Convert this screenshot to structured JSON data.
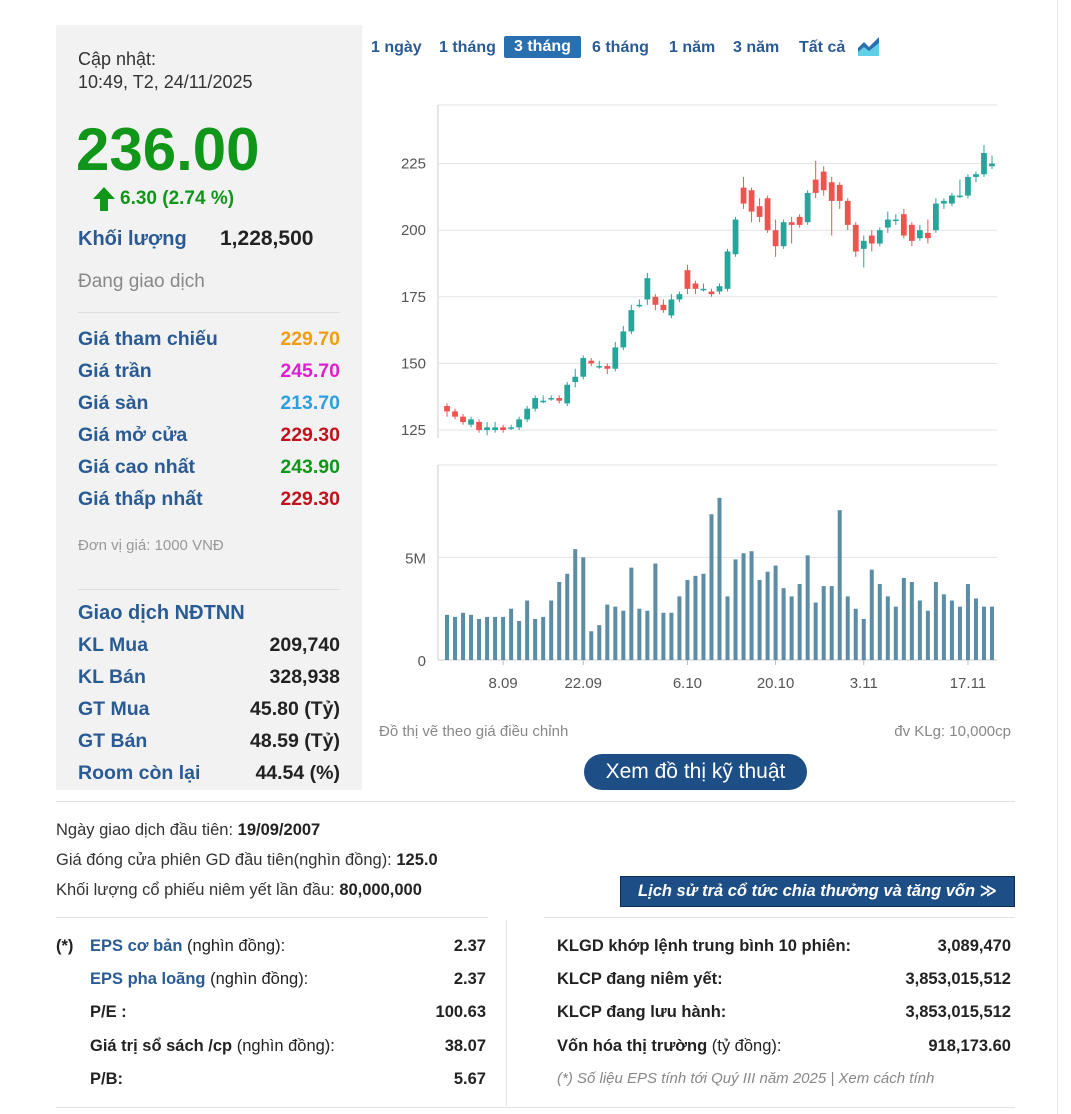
{
  "quote": {
    "update_label": "Cập nhật:",
    "update_time": "10:49, T2, 24/11/2025",
    "price": "236.00",
    "change": "6.30 (2.74 %)",
    "volume_label": "Khối lượng",
    "volume_value": "1,228,500",
    "status": "Đang giao dịch"
  },
  "price_rows": [
    {
      "label": "Giá tham chiếu",
      "value": "229.70",
      "color": "#f39c12"
    },
    {
      "label": "Giá trần",
      "value": "245.70",
      "color": "#e020d0"
    },
    {
      "label": "Giá sàn",
      "value": "213.70",
      "color": "#2f9fe0"
    },
    {
      "label": "Giá mở cửa",
      "value": "229.30",
      "color": "#c0141c"
    },
    {
      "label": "Giá cao nhất",
      "value": "243.90",
      "color": "#109618"
    },
    {
      "label": "Giá thấp nhất",
      "value": "229.30",
      "color": "#c0141c"
    }
  ],
  "unit_note": "Đơn vị giá: 1000 VNĐ",
  "foreign": {
    "title": "Giao dịch NĐTNN",
    "rows": [
      {
        "label": "KL Mua",
        "value": "209,740"
      },
      {
        "label": "KL Bán",
        "value": "328,938"
      },
      {
        "label": "GT Mua",
        "value": "45.80 (Tỷ)"
      },
      {
        "label": "GT Bán",
        "value": "48.59 (Tỷ)"
      },
      {
        "label": "Room còn lại",
        "value": "44.54 (%)"
      }
    ]
  },
  "periods": [
    "1 ngày",
    "1 tháng",
    "3 tháng",
    "6 tháng",
    "1 năm",
    "3 năm",
    "Tất cả"
  ],
  "active_period": "3 tháng",
  "chart_note_left": "Đồ thị vẽ theo giá điều chỉnh",
  "chart_note_right": "đv KLg: 10,000cp",
  "tech_button": "Xem đồ thị kỹ thuật",
  "colors": {
    "up": "#26a69a",
    "down": "#ef5350",
    "volume": "#5b8ea6",
    "accent": "#1d4f86"
  },
  "chart_data": {
    "type": "candlestick",
    "price_yticks": [
      125,
      150,
      175,
      200,
      225
    ],
    "price_ylim": [
      122,
      247
    ],
    "volume_yticks": [
      0,
      5
    ],
    "volume_ytick_labels": [
      "0",
      "5M"
    ],
    "volume_ylim": [
      0,
      9.5
    ],
    "xtick_labels": [
      "8.09",
      "22.09",
      "6.10",
      "20.10",
      "3.11",
      "17.11"
    ],
    "xtick_index": [
      7,
      17,
      30,
      41,
      52,
      65
    ],
    "ohlc": [
      [
        134,
        132,
        135,
        130
      ],
      [
        132,
        130,
        133,
        129
      ],
      [
        130,
        128,
        131,
        127
      ],
      [
        127,
        129,
        130,
        126
      ],
      [
        128,
        125,
        129,
        124
      ],
      [
        125,
        126,
        128,
        123
      ],
      [
        125,
        126,
        128,
        124
      ],
      [
        126,
        125,
        127,
        124
      ],
      [
        126,
        126,
        127,
        125
      ],
      [
        126,
        129,
        130,
        125
      ],
      [
        129,
        133,
        134,
        128
      ],
      [
        133,
        137,
        138,
        132
      ],
      [
        136,
        136,
        138,
        135
      ],
      [
        137,
        137,
        138,
        136
      ],
      [
        137,
        136,
        138,
        135
      ],
      [
        135,
        142,
        143,
        134
      ],
      [
        143,
        145,
        148,
        141
      ],
      [
        145,
        152,
        153,
        144
      ],
      [
        151,
        150,
        152,
        149
      ],
      [
        149,
        149,
        151,
        148
      ],
      [
        149,
        148,
        150,
        146
      ],
      [
        148,
        156,
        158,
        147
      ],
      [
        156,
        162,
        164,
        155
      ],
      [
        162,
        170,
        172,
        161
      ],
      [
        172,
        172,
        174,
        171
      ],
      [
        174,
        182,
        184,
        172
      ],
      [
        175,
        172,
        176,
        170
      ],
      [
        172,
        170,
        174,
        169
      ],
      [
        168,
        174,
        176,
        167
      ],
      [
        174,
        176,
        177,
        173
      ],
      [
        185,
        178,
        187,
        176
      ],
      [
        180,
        178,
        181,
        176
      ],
      [
        178,
        178,
        180,
        177
      ],
      [
        177,
        176,
        178,
        175
      ],
      [
        177,
        179,
        180,
        176
      ],
      [
        178,
        192,
        193,
        177
      ],
      [
        191,
        204,
        205,
        190
      ],
      [
        216,
        210,
        220,
        208
      ],
      [
        215,
        207,
        216,
        203
      ],
      [
        209,
        205,
        212,
        203
      ],
      [
        212,
        200,
        213,
        199
      ],
      [
        200,
        194,
        204,
        190
      ],
      [
        194,
        203,
        204,
        193
      ],
      [
        203,
        202,
        205,
        195
      ],
      [
        205,
        202,
        206,
        201
      ],
      [
        203,
        214,
        215,
        202
      ],
      [
        219,
        214,
        226,
        212
      ],
      [
        222,
        215,
        224,
        213
      ],
      [
        218,
        211,
        220,
        198
      ],
      [
        217,
        211,
        218,
        208
      ],
      [
        211,
        202,
        212,
        200
      ],
      [
        202,
        192,
        203,
        190
      ],
      [
        193,
        196,
        198,
        186
      ],
      [
        198,
        195,
        200,
        192
      ],
      [
        195,
        200,
        201,
        194
      ],
      [
        201,
        204,
        207,
        199
      ],
      [
        204,
        204,
        206,
        202
      ],
      [
        206,
        198,
        208,
        197
      ],
      [
        202,
        196,
        203,
        194
      ],
      [
        197,
        200,
        202,
        196
      ],
      [
        199,
        197,
        204,
        195
      ],
      [
        200,
        210,
        212,
        199
      ],
      [
        210,
        211,
        212,
        208
      ],
      [
        210,
        213,
        214,
        209
      ],
      [
        213,
        213,
        219,
        212
      ],
      [
        213,
        220,
        221,
        212
      ],
      [
        220,
        221,
        222,
        218
      ],
      [
        221,
        229,
        232,
        220
      ],
      [
        224,
        225,
        228,
        223
      ]
    ],
    "volume_m": [
      2.2,
      2.1,
      2.3,
      2.2,
      2.0,
      2.1,
      2.1,
      2.1,
      2.5,
      1.9,
      2.9,
      2.0,
      2.1,
      2.9,
      3.8,
      4.2,
      5.4,
      5.0,
      1.4,
      1.7,
      2.7,
      2.6,
      2.4,
      4.5,
      2.5,
      2.4,
      4.7,
      2.3,
      2.3,
      3.1,
      3.9,
      4.1,
      4.2,
      7.1,
      7.9,
      3.1,
      4.9,
      5.2,
      5.3,
      3.9,
      4.3,
      4.6,
      3.5,
      3.1,
      3.7,
      5.1,
      2.8,
      3.6,
      3.6,
      7.3,
      3.1,
      2.5,
      2.0,
      4.4,
      3.7,
      3.1,
      2.6,
      4.0,
      3.8,
      2.9,
      2.4,
      3.8,
      3.2,
      2.9,
      2.6,
      3.7,
      3.0,
      2.6,
      2.6
    ]
  },
  "info": {
    "first_trade_label": "Ngày giao dịch đầu tiên:",
    "first_trade_value": "19/09/2007",
    "first_close_label": "Giá đóng cửa phiên GD đầu tiên(nghìn đồng):",
    "first_close_value": "125.0",
    "first_volume_label": "Khối lượng cổ phiếu niêm yết lần đầu:",
    "first_volume_value": "80,000,000",
    "dividend_button": "Lịch sử trả cổ tức chia thưởng và tăng vốn ≫"
  },
  "fin_left": [
    {
      "label": "EPS cơ bản",
      "suffix": " (nghìn đồng):",
      "value": "2.37",
      "blue": true
    },
    {
      "label": "EPS pha loãng",
      "suffix": " (nghìn đồng):",
      "value": "2.37",
      "blue": true
    },
    {
      "label": "P/E :",
      "suffix": "",
      "value": "100.63",
      "blue": false
    },
    {
      "label": "Giá trị sổ sách /cp",
      "suffix": " (nghìn đồng):",
      "value": "38.07",
      "blue": false
    },
    {
      "label": "P/B:",
      "suffix": "",
      "value": "5.67",
      "blue": false
    }
  ],
  "fin_star": "(*)",
  "fin_right": [
    {
      "label": "KLGD khớp lệnh trung bình 10 phiên:",
      "suffix": "",
      "value": "3,089,470"
    },
    {
      "label": "KLCP đang niêm yết:",
      "suffix": "",
      "value": "3,853,015,512"
    },
    {
      "label": "KLCP đang lưu hành:",
      "suffix": "",
      "value": "3,853,015,512"
    },
    {
      "label": "Vốn hóa thị trường",
      "suffix": " (tỷ đồng):",
      "value": "918,173.60"
    }
  ],
  "foot_note": "(*) Số liệu EPS tính tới Quý III năm 2025 | Xem cách tính"
}
